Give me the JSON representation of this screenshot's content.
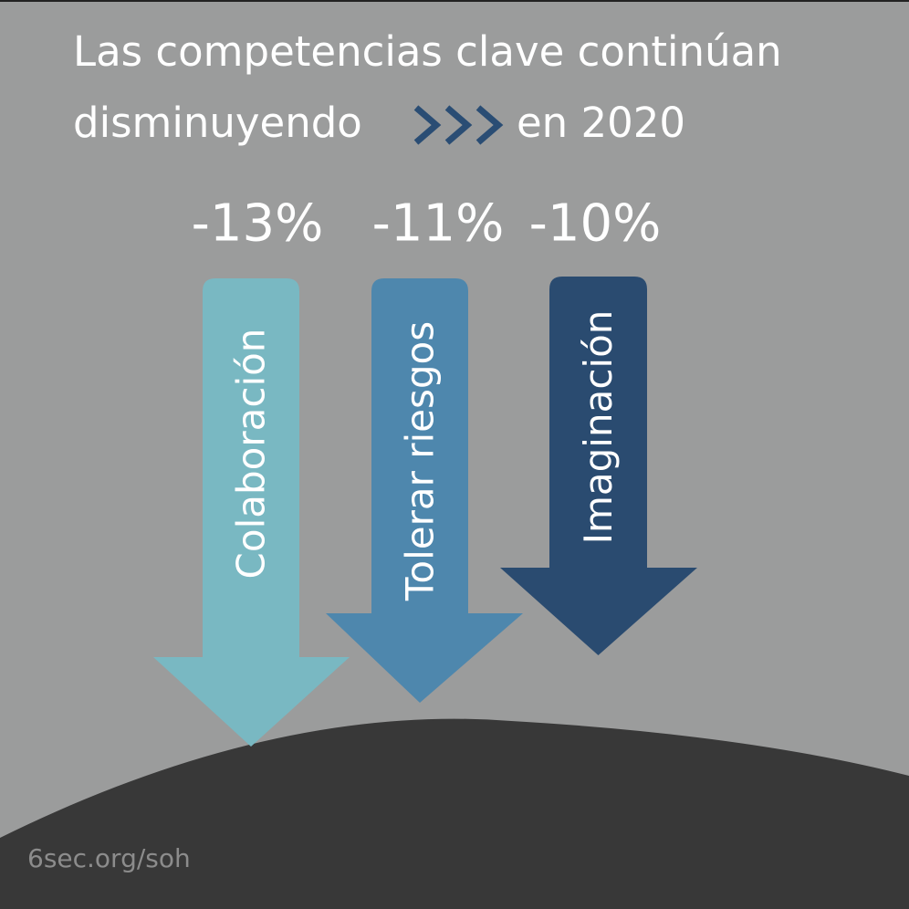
{
  "title_line1": "Las competencias clave continúan",
  "title_line2_start": "disminuyendo",
  "title_line2_end": "en 2020",
  "items": [
    {
      "value": "-13%",
      "label": "Colaboración",
      "color": "#79b8c2"
    },
    {
      "value": "-11%",
      "label": "Tolerar riesgos",
      "color": "#4e87ad"
    },
    {
      "value": "-10%",
      "label": "Imaginación",
      "color": "#2a4b70"
    }
  ],
  "footer": "6sec.org/soh"
}
